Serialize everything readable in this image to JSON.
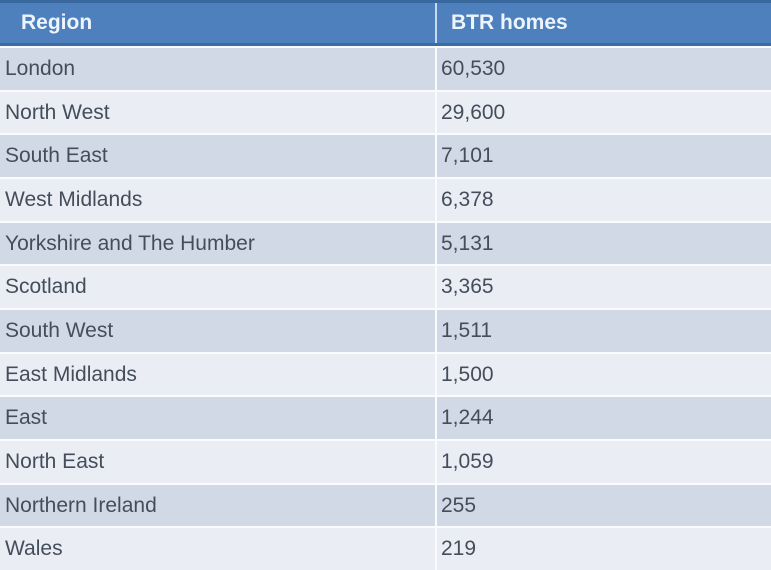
{
  "table": {
    "columns": [
      "Region",
      "BTR homes"
    ],
    "rows": [
      {
        "region": "London",
        "value": "60,530"
      },
      {
        "region": "North West",
        "value": "29,600"
      },
      {
        "region": "South East",
        "value": "7,101"
      },
      {
        "region": "West Midlands",
        "value": "6,378"
      },
      {
        "region": "Yorkshire and The Humber",
        "value": "5,131"
      },
      {
        "region": "Scotland",
        "value": "3,365"
      },
      {
        "region": "South West",
        "value": "1,511"
      },
      {
        "region": "East Midlands",
        "value": "1,500"
      },
      {
        "region": "East",
        "value": "1,244"
      },
      {
        "region": "North East",
        "value": "1,059"
      },
      {
        "region": "Northern Ireland",
        "value": "255"
      },
      {
        "region": "Wales",
        "value": "219"
      }
    ]
  },
  "chart_data": {
    "type": "table",
    "columns": [
      "Region",
      "BTR homes"
    ],
    "rows": [
      [
        "London",
        60530
      ],
      [
        "North West",
        29600
      ],
      [
        "South East",
        7101
      ],
      [
        "West Midlands",
        6378
      ],
      [
        "Yorkshire and The Humber",
        5131
      ],
      [
        "Scotland",
        3365
      ],
      [
        "South West",
        1511
      ],
      [
        "East Midlands",
        1500
      ],
      [
        "East",
        1244
      ],
      [
        "North East",
        1059
      ],
      [
        "Northern Ireland",
        255
      ],
      [
        "Wales",
        219
      ]
    ]
  },
  "colors": {
    "header_background": "#4D80BC",
    "header_border": "#39689F",
    "header_text": "#EDF4FC",
    "band_dark": "#D2D9E6",
    "band_light": "#EAEDF4",
    "gridline": "#FAFBFD",
    "body_text": "#454D5B"
  }
}
